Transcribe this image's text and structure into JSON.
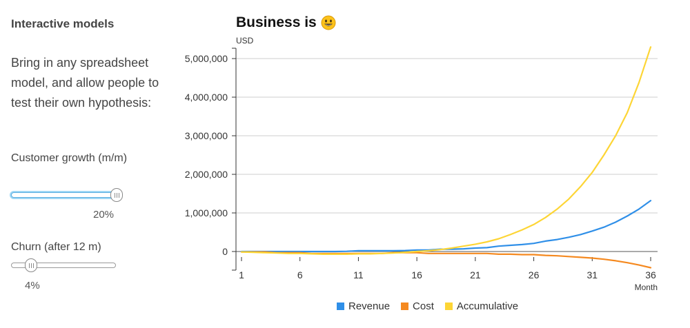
{
  "sidebar": {
    "title": "Interactive models",
    "description": "Bring in any spreadsheet model, and allow people to test their own hypothesis:",
    "growth": {
      "label": "Customer growth (m/m)",
      "value_text": "20%",
      "value": 20,
      "min": 0,
      "max": 20
    },
    "churn": {
      "label": "Churn (after 12 m)",
      "value_text": "4%",
      "value": 4,
      "min": 0,
      "max": 20
    }
  },
  "chart_data": {
    "type": "line",
    "title": "Business is",
    "title_icon": "smiley-icon",
    "ylabel": "USD",
    "xlabel": "Month",
    "ylim": [
      -450000,
      5400000
    ],
    "xlim": [
      1,
      36
    ],
    "yticks": [
      0,
      1000000,
      2000000,
      3000000,
      4000000,
      5000000
    ],
    "ytick_labels": [
      "0",
      "1,000,000",
      "2,000,000",
      "3,000,000",
      "4,000,000",
      "5,000,000"
    ],
    "xticks": [
      1,
      6,
      11,
      16,
      21,
      26,
      31,
      36
    ],
    "grid": "horizontal",
    "legend": "bottom",
    "x": [
      1,
      2,
      3,
      4,
      5,
      6,
      7,
      8,
      9,
      10,
      11,
      12,
      13,
      14,
      15,
      16,
      17,
      18,
      19,
      20,
      21,
      22,
      23,
      24,
      25,
      26,
      27,
      28,
      29,
      30,
      31,
      32,
      33,
      34,
      35,
      36
    ],
    "series": [
      {
        "name": "Revenue",
        "color": "#2f8fe8",
        "values": [
          0,
          0,
          0,
          0,
          0,
          0,
          0,
          0,
          0,
          5000,
          20000,
          20000,
          20000,
          20000,
          25000,
          40000,
          40000,
          60000,
          60000,
          70000,
          90000,
          100000,
          140000,
          160000,
          180000,
          210000,
          270000,
          310000,
          370000,
          440000,
          530000,
          630000,
          760000,
          920000,
          1100000,
          1320000
        ]
      },
      {
        "name": "Cost",
        "color": "#f5891f",
        "values": [
          -10000,
          -10000,
          -10000,
          -30000,
          -30000,
          -30000,
          -50000,
          -50000,
          -50000,
          -50000,
          -50000,
          -50000,
          -50000,
          -30000,
          -30000,
          -30000,
          -50000,
          -50000,
          -50000,
          -50000,
          -50000,
          -50000,
          -70000,
          -70000,
          -80000,
          -80000,
          -100000,
          -110000,
          -130000,
          -150000,
          -170000,
          -200000,
          -240000,
          -290000,
          -350000,
          -420000
        ]
      },
      {
        "name": "Accumulative",
        "color": "#fdd535",
        "values": [
          -10000,
          -20000,
          -30000,
          -40000,
          -50000,
          -50000,
          -60000,
          -70000,
          -70000,
          -70000,
          -60000,
          -60000,
          -50000,
          -40000,
          -20000,
          0,
          20000,
          50000,
          90000,
          140000,
          190000,
          250000,
          330000,
          440000,
          560000,
          700000,
          880000,
          1100000,
          1360000,
          1680000,
          2050000,
          2500000,
          3000000,
          3600000,
          4380000,
          5300000
        ]
      }
    ]
  }
}
